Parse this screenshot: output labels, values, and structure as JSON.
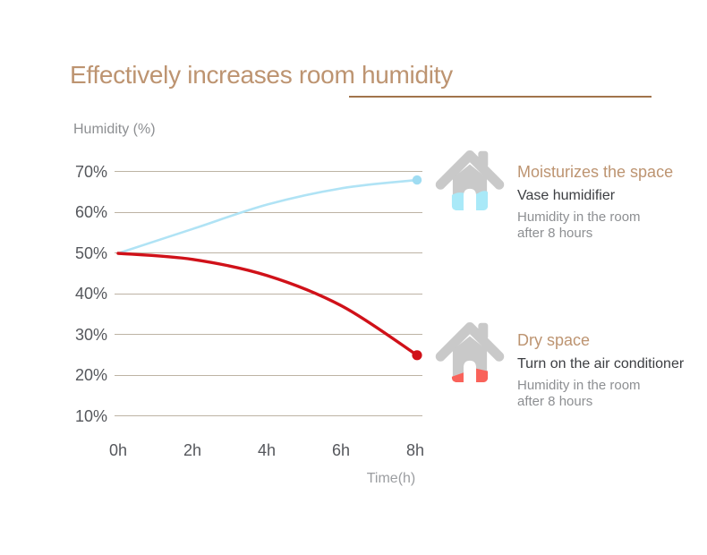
{
  "header": {
    "title": "Effectively increases room humidity"
  },
  "chart_data": {
    "type": "line",
    "title": "Effectively increases room humidity",
    "ylabel": "Humidity (%)",
    "xlabel": "Time(h)",
    "y_tick_labels": [
      "70%",
      "60%",
      "50%",
      "40%",
      "30%",
      "20%",
      "10%"
    ],
    "x_tick_labels": [
      "0h",
      "2h",
      "4h",
      "6h",
      "8h"
    ],
    "ylim": [
      5,
      75
    ],
    "xlim_hours": [
      0,
      8
    ],
    "grid": true,
    "legend_position": "none",
    "series": [
      {
        "name": "Vase humidifier (moisturized space)",
        "color": "#b0e3f5",
        "dot_color": "#9fdcf2",
        "x_hours": [
          0,
          2,
          4,
          6,
          8
        ],
        "values_percent": [
          50,
          56,
          62,
          66,
          68
        ]
      },
      {
        "name": "Air conditioner on (dry space)",
        "color": "#d01119",
        "dot_color": "#d01119",
        "x_hours": [
          0,
          2,
          4,
          6,
          8
        ],
        "values_percent": [
          50,
          48.5,
          44.5,
          37,
          25
        ]
      }
    ]
  },
  "annotations": [
    {
      "icon": "house-humidified-icon",
      "house_fill_color": "#a9e9f8",
      "heading": "Moisturizes the space",
      "subheading": "Vase humidifier",
      "body_line1": "Humidity in the room",
      "body_line2": "after 8 hours"
    },
    {
      "icon": "house-dry-icon",
      "house_fill_color": "#f9625a",
      "heading": "Dry space",
      "subheading": "Turn on the air conditioner",
      "body_line1": "Humidity in the room",
      "body_line2": "after 8 hours"
    }
  ],
  "colors": {
    "accent_tan": "#bd9471",
    "underline_brown": "#a1744b",
    "gridline": "#bdb3a4",
    "axis_text": "#55575c",
    "muted_text": "#8d8f92",
    "dark_text": "#3c3e42",
    "humidifier_line": "#b0e3f5",
    "dry_line": "#d01119",
    "house_gray": "#c9c9c9"
  }
}
